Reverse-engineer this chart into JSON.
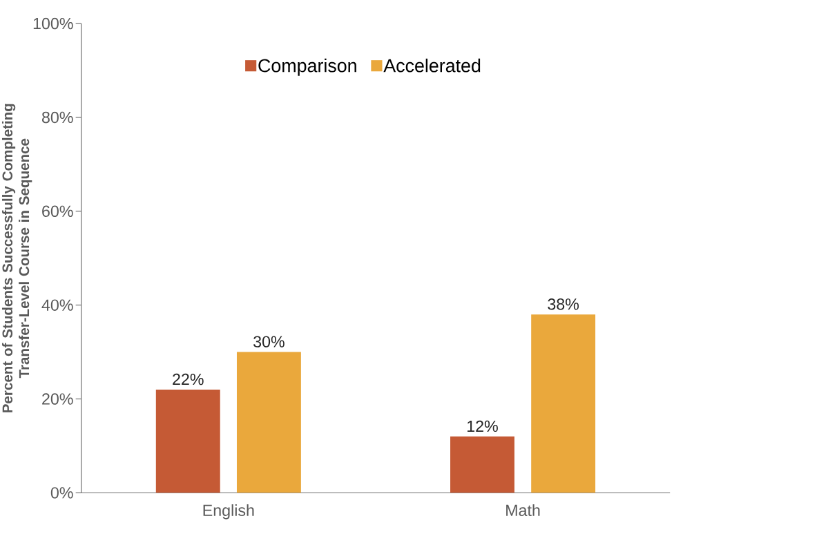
{
  "chart_data": {
    "type": "bar",
    "ylabel": "Percent of Students Successfully Completing Transfer-Level Course in Sequence",
    "categories": [
      "English",
      "Math"
    ],
    "series": [
      {
        "name": "Comparison",
        "color": "#c55a35",
        "values": [
          22,
          12
        ],
        "value_labels": [
          "22%",
          "12%"
        ]
      },
      {
        "name": "Accelerated",
        "color": "#eaa83c",
        "values": [
          30,
          38
        ],
        "value_labels": [
          "30%",
          "38%"
        ]
      }
    ],
    "ylim": [
      0,
      100
    ],
    "yticks": [
      {
        "value": 0,
        "label": "0%"
      },
      {
        "value": 20,
        "label": "20%"
      },
      {
        "value": 40,
        "label": "40%"
      },
      {
        "value": 60,
        "label": "60%"
      },
      {
        "value": 80,
        "label": "80%"
      },
      {
        "value": 100,
        "label": "100%"
      }
    ],
    "legend": "top"
  }
}
